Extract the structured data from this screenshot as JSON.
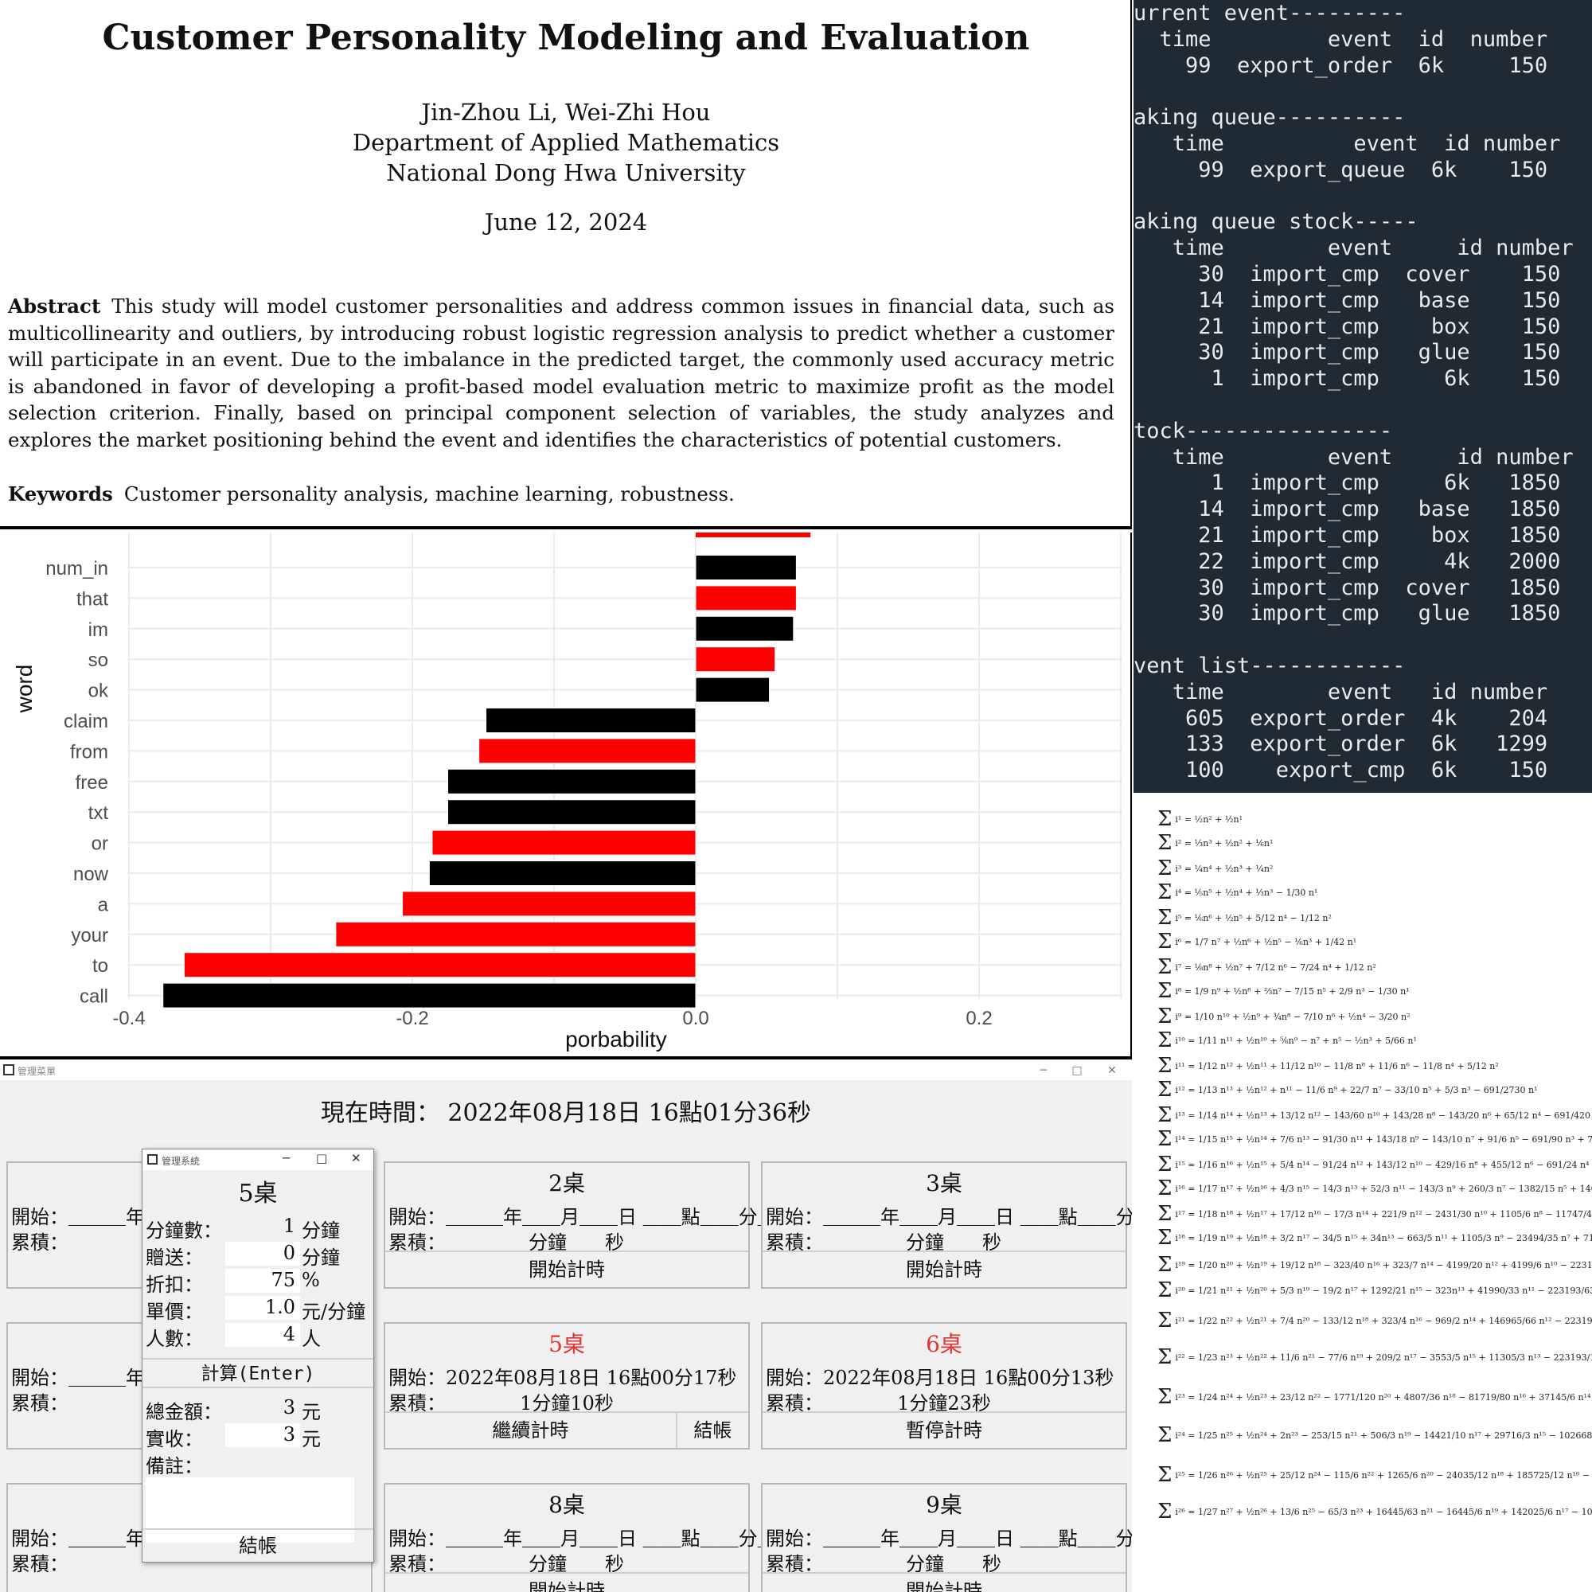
{
  "paper": {
    "title": "Customer Personality Modeling and Evaluation",
    "authors": "Jin-Zhou Li, Wei-Zhi Hou",
    "department": "Department of Applied Mathematics",
    "university": "National Dong Hwa University",
    "date": "June 12, 2024",
    "abstract_label": "Abstract",
    "abstract": "This study will model customer personalities and address common issues in financial data, such as multicollinearity and outliers, by introducing robust logistic regression analysis to predict whether a customer will participate in an event. Due to the imbalance in the predicted target, the commonly used accuracy metric is abandoned in favor of developing a profit-based model evaluation metric to maximize profit as the model selection criterion. Finally, based on principal component selection of variables, the study analyzes and explores the market positioning behind the event and identifies the characteristics of potential customers.",
    "keywords_label": "Keywords",
    "keywords": "Customer personality analysis, machine learning, robustness."
  },
  "terminal": {
    "text": "urrent event---------\n  time         event  id  number\n    99  export_order  6k     150\n\naking queue----------\n   time          event  id number\n     99  export_queue  6k    150\n\naking queue stock-----\n   time        event     id number\n     30  import_cmp  cover    150\n     14  import_cmp   base    150\n     21  import_cmp    box    150\n     30  import_cmp   glue    150\n      1  import_cmp     6k    150\n\ntock----------------\n   time        event     id number\n      1  import_cmp     6k   1850\n     14  import_cmp   base   1850\n     21  import_cmp    box   1850\n     22  import_cmp     4k   2000\n     30  import_cmp  cover   1850\n     30  import_cmp   glue   1850\n\nvent list------------\n   time        event   id number\n    605  export_order  4k    204\n    133  export_order  6k   1299\n    100    export_cmp  6k    150"
  },
  "chart_data": {
    "type": "bar",
    "orientation": "horizontal",
    "xlabel": "porbability",
    "ylabel": "word",
    "xlim": [
      -0.4,
      0.3
    ],
    "xticks": [
      "-0.4",
      "-0.2",
      "0.0",
      "0.2"
    ],
    "grid": true,
    "colors": [
      "#ff0000",
      "#000000"
    ],
    "categories": [
      "num_in",
      "that",
      "im",
      "so",
      "ok",
      "claim",
      "from",
      "free",
      "txt",
      "or",
      "now",
      "a",
      "your",
      "to",
      "call"
    ],
    "values": [
      0.071,
      0.071,
      0.069,
      0.056,
      0.052,
      -0.148,
      -0.153,
      -0.175,
      -0.175,
      -0.186,
      -0.188,
      -0.207,
      -0.254,
      -0.361,
      -0.376
    ],
    "bar_colors": [
      "black",
      "red",
      "black",
      "red",
      "black",
      "black",
      "red",
      "black",
      "black",
      "red",
      "black",
      "red",
      "red",
      "red",
      "black"
    ],
    "partial_top_bar": {
      "value": 0.081,
      "color": "red"
    }
  },
  "formulas": {
    "rows": [
      "i¹ = ½n² + ½n¹",
      "i² = ⅓n³ + ½n² + ⅙n¹",
      "i³ = ¼n⁴ + ½n³ + ¼n²",
      "i⁴ = ⅕n⁵ + ½n⁴ + ⅓n³ − 1/30 n¹",
      "i⁵ = ⅙n⁶ + ½n⁵ + 5/12 n⁴ − 1/12 n²",
      "i⁶ = 1/7 n⁷ + ½n⁶ + ½n⁵ − ⅙n³ + 1/42 n¹",
      "i⁷ = ⅛n⁸ + ½n⁷ + 7/12 n⁶ − 7/24 n⁴ + 1/12 n²",
      "i⁸ = 1/9 n⁹ + ½n⁸ + ⅔n⁷ − 7/15 n⁵ + 2/9 n³ − 1/30 n¹",
      "i⁹ = 1/10 n¹⁰ + ½n⁹ + ¾n⁸ − 7/10 n⁶ + ½n⁴ − 3/20 n²",
      "i¹⁰ = 1/11 n¹¹ + ½n¹⁰ + ⅚n⁹ − n⁷ + n⁵ − ½n³ + 5/66 n¹",
      "i¹¹ = 1/12 n¹² + ½n¹¹ + 11/12 n¹⁰ − 11/8 n⁸ + 11/6 n⁶ − 11/8 n⁴ + 5/12 n²",
      "i¹² = 1/13 n¹³ + ½n¹² + n¹¹ − 11/6 n⁹ + 22/7 n⁷ − 33/10 n⁵ + 5/3 n³ − 691/2730 n¹",
      "i¹³ = 1/14 n¹⁴ + ½n¹³ + 13/12 n¹² − 143/60 n¹⁰ + 143/28 n⁸ − 143/20 n⁶ + 65/12 n⁴ − 691/420 n²",
      "i¹⁴ = 1/15 n¹⁵ + ½n¹⁴ + 7/6 n¹³ − 91/30 n¹¹ + 143/18 n⁹ − 143/10 n⁷ + 91/6 n⁵ − 691/90 n³ + 7/6 n¹",
      "i¹⁵ = 1/16 n¹⁶ + ½n¹⁵ + 5/4 n¹⁴ − 91/24 n¹² + 143/12 n¹⁰ − 429/16 n⁸ + 455/12 n⁶ − 691/24 n⁴ + 35/4 n²",
      "i¹⁶ = 1/17 n¹⁷ + ½n¹⁶ + 4/3 n¹⁵ − 14/3 n¹³ + 52/3 n¹¹ − 143/3 n⁹ + 260/3 n⁷ − 1382/15 n⁵ + 140/3 n³ − 3617/510 n¹",
      "i¹⁷ = 1/18 n¹⁸ + ½n¹⁷ + 17/12 n¹⁶ − 17/3 n¹⁴ + 221/9 n¹² − 2431/30 n¹⁰ + 1105/6 n⁸ − 11747/45 n⁶ + 595/3 n⁴ − 3617/60 n²",
      "i¹⁸ = 1/19 n¹⁹ + ½n¹⁸ + 3/2 n¹⁷ − 34/5 n¹⁵ + 34n¹³ − 663/5 n¹¹ + 1105/3 n⁹ − 23494/35 n⁷ + 714n⁵ − 3617/10 n³ + 43867/798 n¹",
      "i¹⁹ = 1/20 n²⁰ + ½n¹⁹ + 19/12 n¹⁸ − 323/40 n¹⁶ + 323/7 n¹⁴ − 4199/20 n¹² + 4199/6 n¹⁰ − 223193/140 n⁸ + 2261n⁶ − 68723/40 n⁴ + 43867/84",
      "i²⁰ = 1/21 n²¹ + ½n²⁰ + 5/3 n¹⁹ − 19/2 n¹⁷ + 1292/21 n¹⁵ − 323n¹³ + 41990/33 n¹¹ − 223193/63 n⁹ + 6460n⁷ − 68723/10 n⁵ + 219335/63 n³ − 1746",
      "i²¹ = 1/22 n²² + ½n²¹ + 7/4 n²⁰ − 133/12 n¹⁸ + 323/4 n¹⁶ − 969/2 n¹⁴ + 146965/66 n¹² − 223193/30 n¹⁰ + 33915/2 n⁸ − 481061/20 n⁶ + 219335/12 n⁴ − 1222277/220 n²",
      "i²² = 1/23 n²³ + ½n²² + 11/6 n²¹ − 77/6 n¹⁹ + 209/2 n¹⁷ − 3553/5 n¹⁵ + 11305/3 n¹³ − 223193/15 n¹¹ + 124355/3 n⁹ − 755953/10 n⁷ + 482537/6 n⁵ − 1222277/30 n³ + 854513/138 n¹",
      "i²³ = 1/24 n²⁴ + ½n²³ + 23/12 n²² − 1771/120 n²⁰ + 4807/36 n¹⁸ − 81719/80 n¹⁶ + 37145/6 n¹⁴ − 5133439/180 n¹² + 572033/6 n¹⁰ − 17386919/80 n⁸ + 11098351/36 n⁶ − 28112371/120 n⁴ + 854513/12 n²",
      "i²⁴ = 1/25 n²⁵ + ½n²⁴ + 2n²³ − 253/15 n²¹ + 506/3 n¹⁹ − 14421/10 n¹⁷ + 29716/3 n¹⁵ − 10266878/195 n¹³ + 208012n¹¹ − 17386919/30 n⁹ + 22196702/21 n⁷ − 28112371/25 n⁵ + 1709026/3 n³ − 236364091/2730 n¹",
      "i²⁵ = 1/26 n²⁶ + ½n²⁵ + 25/12 n²⁴ − 115/6 n²² + 1265/6 n²⁰ − 24035/12 n¹⁸ + 185725/12 n¹⁶ − 25667195/273 n¹⁴ + 1300075/3 n¹² − 17386919/12 n¹⁰ + 277458775/84 n⁸ − 28112371/6 n⁶ + 21362825/6 n⁴ − 1181820455/1092 n²",
      "i²⁶ = 1/27 n²⁷ + ½n²⁶ + 13/6 n²⁵ − 65/3 n²³ + 16445/63 n²¹ − 16445/6 n¹⁹ + 142025/6 n¹⁷ − 10266878/63 n¹⁵ + 2600150/3 n¹³ − 20548177/6 n¹¹ + 3606964075/378 n⁹ − 52208689/3 n⁷ + 55543345/3 n⁵ − 1181820455/126 n³ + 8553103/6 n¹"
    ]
  },
  "app": {
    "window_title": "管理菜單",
    "clock": "現在時間： 2022年08月18日  16點01分36秒",
    "empty_start": "＿＿＿年＿＿月＿＿日 ＿＿點＿＿分＿＿秒",
    "empty_total": "＿分鐘＿＿秒",
    "start_label": "開始：",
    "total_label": "累積：",
    "start_button": "開始計時",
    "tables": [
      {
        "name": "2桌"
      },
      {
        "name": "3桌"
      },
      {
        "name": "8桌"
      },
      {
        "name": "9桌"
      }
    ],
    "active5": {
      "name": "5桌",
      "start": "2022年08月18日  16點00分17秒",
      "total": "1分鐘10秒",
      "button": "繼續計時",
      "settle": "結帳"
    },
    "active6": {
      "name": "6桌",
      "start": "2022年08月18日  16點00分13秒",
      "total": "1分鐘23秒",
      "button": "暫停計時"
    },
    "left_start_partial": "＿＿＿年＿",
    "dialog": {
      "window_title": "管理系統",
      "table": "5桌",
      "minutes_label": "分鐘數：",
      "minutes_value": "1",
      "minutes_unit": "分鐘",
      "gift_label": "贈送：",
      "gift_value": "0",
      "gift_unit": "分鐘",
      "discount_label": "折扣：",
      "discount_value": "75",
      "discount_unit": "%",
      "price_label": "單價：",
      "price_value": "1.0",
      "price_unit": "元/分鐘",
      "people_label": "人數：",
      "people_value": "4",
      "people_unit": "人",
      "calc_button": "計算(Enter)",
      "total_label": "總金額：",
      "total_value": "3",
      "total_unit": "元",
      "paid_label": "實收：",
      "paid_value": "3",
      "paid_unit": "元",
      "memo_label": "備註：",
      "settle_button": "結帳"
    }
  }
}
